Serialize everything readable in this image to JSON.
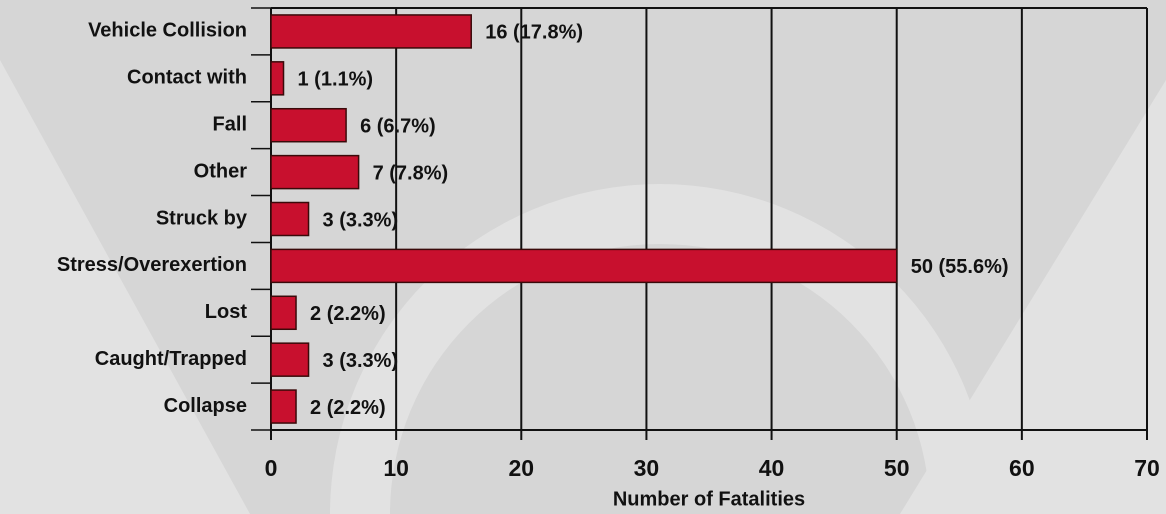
{
  "chart_data": {
    "type": "bar",
    "orientation": "horizontal",
    "x_label": "Number of Fatalities",
    "categories": [
      "Vehicle Collision",
      "Contact with",
      "Fall",
      "Other",
      "Struck by",
      "Stress/Overexertion",
      "Lost",
      "Caught/Trapped",
      "Collapse"
    ],
    "values": [
      16,
      1,
      6,
      7,
      3,
      50,
      2,
      3,
      2
    ],
    "value_labels": [
      "16 (17.8%)",
      "1 (1.1%)",
      "6 (6.7%)",
      "7 (7.8%)",
      "3 (3.3%)",
      "50 (55.6%)",
      "2 (2.2%)",
      "3 (3.3%)",
      "2 (2.2%)"
    ],
    "color": "#c8102e",
    "xlim": [
      0,
      70
    ],
    "xticks": [
      0,
      10,
      20,
      30,
      40,
      50,
      60,
      70
    ],
    "grid": true
  }
}
